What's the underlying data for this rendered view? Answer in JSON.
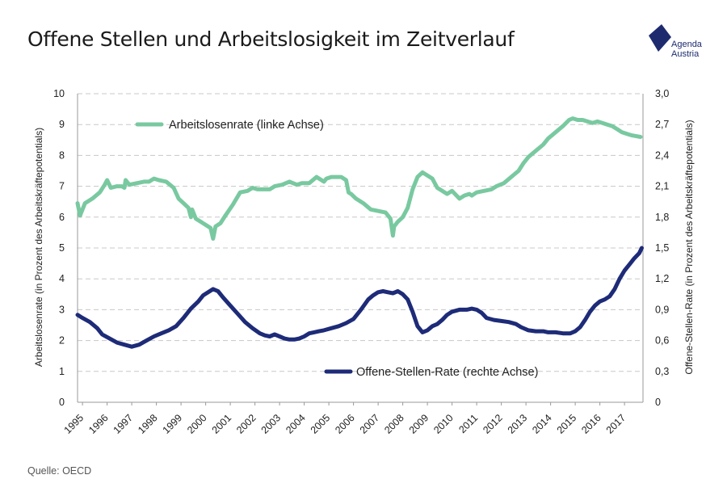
{
  "header": {
    "title": "Offene Stellen und Arbeitslosigkeit im Zeitverlauf",
    "logo_line1": "Agenda",
    "logo_line2": "Austria"
  },
  "footer": {
    "source": "Quelle: OECD"
  },
  "colors": {
    "unemployment": "#79c9a0",
    "vacancy": "#1d2b78",
    "grid": "#c8c8c8",
    "logo": "#1d2b6e"
  },
  "chart_data": {
    "type": "line",
    "title": "Offene Stellen und Arbeitslosigkeit im Zeitverlauf",
    "xlabel": "",
    "ylabel": "Arbeitslosenrate (in Prozent des Arbeitskräftepotentials)",
    "y2label": "Offene-Stellen-Rate (in Prozent des Arbeitskräftepotentials)",
    "ylim": [
      0,
      10
    ],
    "y2lim": [
      0,
      3.0
    ],
    "yticks": [
      "0",
      "1",
      "2",
      "3",
      "4",
      "5",
      "6",
      "7",
      "8",
      "9",
      "10"
    ],
    "y2ticks": [
      "0",
      "0,3",
      "0,6",
      "0,9",
      "1,2",
      "1,5",
      "1,8",
      "2,1",
      "2,4",
      "2,7",
      "3,0"
    ],
    "xticks": [
      "1995",
      "1996",
      "1997",
      "1998",
      "1999",
      "2000",
      "2001",
      "2002",
      "2003",
      "2004",
      "2005",
      "2006",
      "2007",
      "2008",
      "2009",
      "2010",
      "2011",
      "2012",
      "2013",
      "2014",
      "2015",
      "2016",
      "2017"
    ],
    "xrange": [
      1995.0,
      2017.95
    ],
    "grid": true,
    "series": [
      {
        "name": "Arbeitslosenrate (linke Achse)",
        "axis": "left",
        "color": "#79c9a0",
        "x": [
          1995.0,
          1995.1,
          1995.3,
          1995.6,
          1995.9,
          1996.1,
          1996.2,
          1996.35,
          1996.6,
          1996.8,
          1996.9,
          1996.95,
          1997.1,
          1997.4,
          1997.7,
          1997.9,
          1998.1,
          1998.3,
          1998.6,
          1998.9,
          1999.1,
          1999.3,
          1999.5,
          1999.6,
          1999.65,
          1999.8,
          2000.0,
          2000.2,
          2000.4,
          2000.5,
          2000.6,
          2000.8,
          2001.0,
          2001.3,
          2001.6,
          2001.9,
          2002.1,
          2002.3,
          2002.5,
          2002.8,
          2003.0,
          2003.3,
          2003.6,
          2003.9,
          2004.1,
          2004.4,
          2004.7,
          2005.0,
          2005.1,
          2005.3,
          2005.5,
          2005.7,
          2005.9,
          2006.0,
          2006.1,
          2006.3,
          2006.6,
          2006.9,
          2007.2,
          2007.5,
          2007.7,
          2007.8,
          2007.85,
          2008.0,
          2008.2,
          2008.4,
          2008.6,
          2008.8,
          2009.0,
          2009.2,
          2009.4,
          2009.6,
          2009.8,
          2010.0,
          2010.2,
          2010.5,
          2010.7,
          2010.9,
          2011.0,
          2011.2,
          2011.5,
          2011.8,
          2012.0,
          2012.3,
          2012.6,
          2012.9,
          2013.1,
          2013.3,
          2013.6,
          2013.9,
          2014.1,
          2014.4,
          2014.7,
          2014.95,
          2015.1,
          2015.3,
          2015.5,
          2015.7,
          2015.9,
          2016.1,
          2016.3,
          2016.5,
          2016.7,
          2016.9,
          2017.1,
          2017.3,
          2017.5,
          2017.7,
          2017.85
        ],
        "values": [
          6.45,
          6.05,
          6.45,
          6.6,
          6.8,
          7.05,
          7.2,
          6.95,
          7.0,
          7.0,
          6.95,
          7.2,
          7.05,
          7.1,
          7.15,
          7.15,
          7.25,
          7.2,
          7.15,
          6.95,
          6.6,
          6.45,
          6.3,
          6.0,
          6.25,
          5.95,
          5.85,
          5.75,
          5.65,
          5.3,
          5.7,
          5.8,
          6.05,
          6.4,
          6.8,
          6.85,
          6.95,
          6.9,
          6.9,
          6.9,
          7.0,
          7.05,
          7.15,
          7.05,
          7.1,
          7.1,
          7.3,
          7.15,
          7.25,
          7.3,
          7.3,
          7.3,
          7.2,
          6.8,
          6.75,
          6.6,
          6.45,
          6.25,
          6.2,
          6.15,
          5.95,
          5.4,
          5.7,
          5.85,
          6.0,
          6.3,
          6.9,
          7.3,
          7.45,
          7.35,
          7.25,
          6.95,
          6.85,
          6.75,
          6.85,
          6.6,
          6.7,
          6.75,
          6.7,
          6.8,
          6.85,
          6.9,
          7.0,
          7.1,
          7.3,
          7.5,
          7.75,
          7.95,
          8.15,
          8.35,
          8.55,
          8.75,
          8.95,
          9.15,
          9.2,
          9.15,
          9.15,
          9.1,
          9.05,
          9.1,
          9.05,
          9.0,
          8.95,
          8.85,
          8.75,
          8.7,
          8.65,
          8.62,
          8.6
        ]
      },
      {
        "name": "Offene-Stellen-Rate (rechte Achse)",
        "axis": "right",
        "color": "#1d2b78",
        "x": [
          1995.0,
          1995.2,
          1995.5,
          1995.8,
          1996.0,
          1996.3,
          1996.6,
          1996.9,
          1997.2,
          1997.5,
          1997.8,
          1998.1,
          1998.4,
          1998.7,
          1999.0,
          1999.3,
          1999.6,
          1999.9,
          2000.1,
          2000.3,
          2000.5,
          2000.7,
          2000.9,
          2001.2,
          2001.5,
          2001.8,
          2002.1,
          2002.4,
          2002.6,
          2002.8,
          2003.0,
          2003.2,
          2003.4,
          2003.6,
          2003.8,
          2004.0,
          2004.2,
          2004.4,
          2004.6,
          2004.8,
          2005.0,
          2005.3,
          2005.6,
          2005.9,
          2006.2,
          2006.5,
          2006.8,
          2007.0,
          2007.2,
          2007.4,
          2007.6,
          2007.8,
          2008.0,
          2008.2,
          2008.4,
          2008.6,
          2008.8,
          2009.0,
          2009.2,
          2009.4,
          2009.6,
          2009.8,
          2010.0,
          2010.2,
          2010.5,
          2010.8,
          2011.0,
          2011.2,
          2011.4,
          2011.6,
          2011.9,
          2012.2,
          2012.5,
          2012.8,
          2013.0,
          2013.3,
          2013.6,
          2013.9,
          2014.1,
          2014.4,
          2014.7,
          2015.0,
          2015.2,
          2015.4,
          2015.6,
          2015.8,
          2016.0,
          2016.2,
          2016.4,
          2016.6,
          2016.8,
          2017.0,
          2017.2,
          2017.4,
          2017.6,
          2017.8,
          2017.9
        ],
        "values": [
          0.85,
          0.82,
          0.78,
          0.72,
          0.66,
          0.62,
          0.58,
          0.56,
          0.54,
          0.56,
          0.6,
          0.64,
          0.67,
          0.7,
          0.74,
          0.82,
          0.91,
          0.98,
          1.04,
          1.07,
          1.1,
          1.08,
          1.02,
          0.94,
          0.86,
          0.78,
          0.72,
          0.67,
          0.65,
          0.64,
          0.66,
          0.64,
          0.62,
          0.61,
          0.61,
          0.62,
          0.64,
          0.67,
          0.68,
          0.69,
          0.7,
          0.72,
          0.74,
          0.77,
          0.81,
          0.9,
          1.0,
          1.04,
          1.07,
          1.08,
          1.07,
          1.06,
          1.08,
          1.05,
          1.0,
          0.88,
          0.74,
          0.68,
          0.7,
          0.74,
          0.76,
          0.8,
          0.85,
          0.88,
          0.9,
          0.9,
          0.91,
          0.9,
          0.87,
          0.82,
          0.8,
          0.79,
          0.78,
          0.76,
          0.73,
          0.7,
          0.69,
          0.69,
          0.68,
          0.68,
          0.67,
          0.67,
          0.69,
          0.73,
          0.8,
          0.88,
          0.94,
          0.98,
          1.0,
          1.03,
          1.1,
          1.2,
          1.28,
          1.34,
          1.4,
          1.45,
          1.5
        ]
      }
    ],
    "legend": [
      {
        "label": "Arbeitslosenrate (linke Achse)",
        "placement": "top-left"
      },
      {
        "label": "Offene-Stellen-Rate (rechte Achse)",
        "placement": "bottom-right"
      }
    ]
  }
}
